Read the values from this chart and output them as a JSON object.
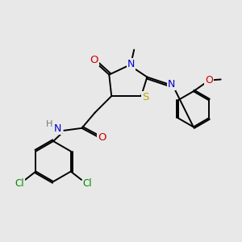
{
  "background_color": "#e8e8e8",
  "atom_colors": {
    "C": "#000000",
    "N": "#0000cc",
    "O": "#cc0000",
    "S": "#bbaa00",
    "Cl": "#008800",
    "H": "#777777"
  },
  "figsize": [
    3.0,
    3.0
  ],
  "dpi": 100
}
